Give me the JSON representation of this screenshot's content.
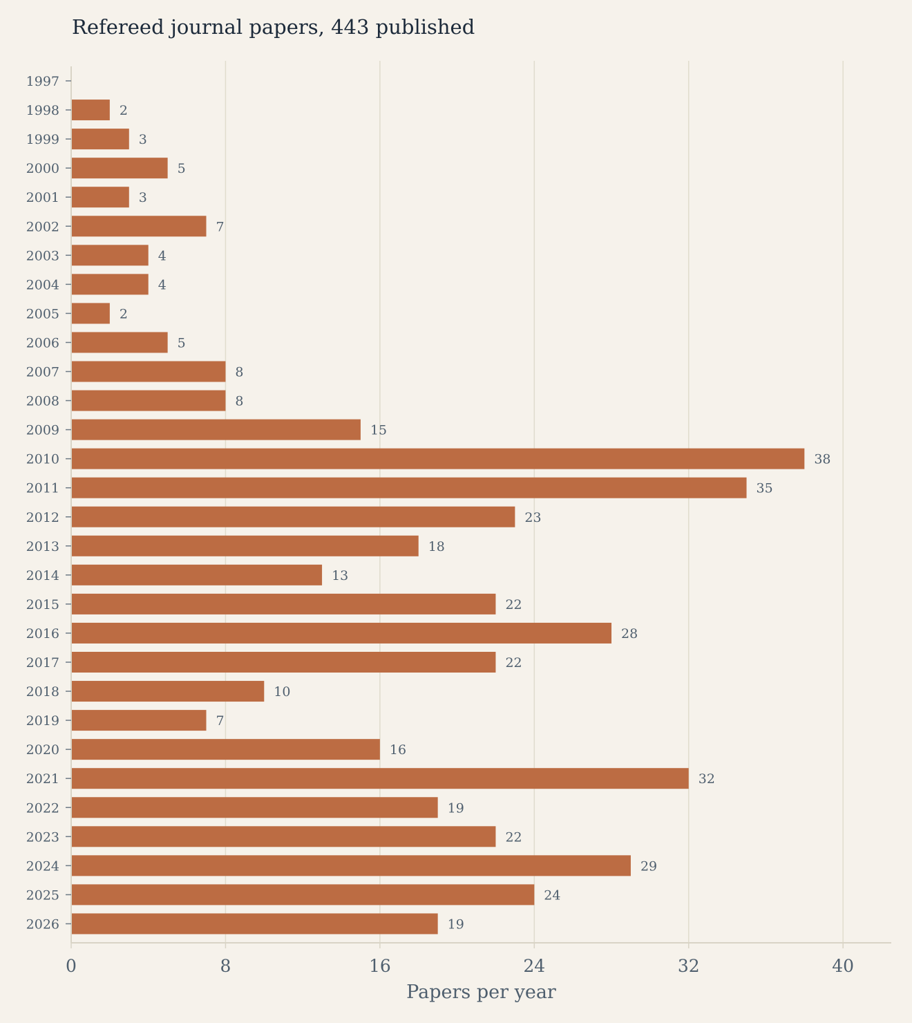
{
  "title": "Refereed journal papers, 443 published",
  "chart_data": {
    "type": "bar",
    "orientation": "horizontal",
    "title": "Refereed journal papers, 443 published",
    "xlabel": "Papers per year",
    "ylabel": "",
    "categories": [
      "1997",
      "1998",
      "1999",
      "2000",
      "2001",
      "2002",
      "2003",
      "2004",
      "2005",
      "2006",
      "2007",
      "2008",
      "2009",
      "2010",
      "2011",
      "2012",
      "2013",
      "2014",
      "2015",
      "2016",
      "2017",
      "2018",
      "2019",
      "2020",
      "2021",
      "2022",
      "2023",
      "2024",
      "2025",
      "2026"
    ],
    "values": [
      0,
      2,
      3,
      5,
      3,
      7,
      4,
      4,
      2,
      5,
      8,
      8,
      15,
      38,
      35,
      23,
      18,
      13,
      22,
      28,
      22,
      10,
      7,
      16,
      32,
      19,
      22,
      29,
      24,
      19
    ],
    "value_labels": [
      "",
      "2",
      "3",
      "5",
      "3",
      "7",
      "4",
      "4",
      "2",
      "5",
      "8",
      "8",
      "15",
      "38",
      "35",
      "23",
      "18",
      "13",
      "22",
      "28",
      "22",
      "10",
      "7",
      "16",
      "32",
      "19",
      "22",
      "29",
      "24",
      "19"
    ],
    "xlim": [
      0,
      42.5
    ],
    "x_ticks": [
      0,
      8,
      16,
      24,
      32,
      40
    ],
    "x_tick_labels": [
      "0",
      "8",
      "16",
      "24",
      "32",
      "40"
    ],
    "grid": "vertical",
    "legend": "none",
    "colors": {
      "bar": "#bc6c43",
      "grid": "#e0dccd",
      "axis": "#d9d4c6",
      "text": "#4f5f6e",
      "title": "#1c2a3a",
      "background": "#f6f2eb"
    }
  }
}
